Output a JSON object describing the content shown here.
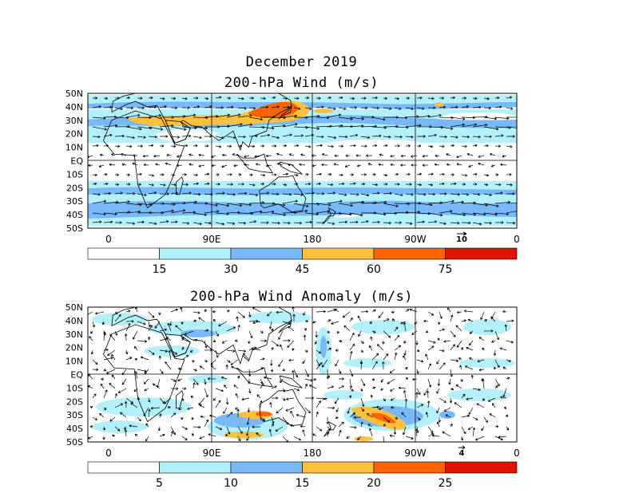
{
  "header": {
    "date_title": "December 2019",
    "panel1_title": "200-hPa Wind (m/s)",
    "panel2_title": "200-hPa Wind Anomaly (m/s)"
  },
  "map": {
    "lat_labels": [
      "50N",
      "40N",
      "30N",
      "20N",
      "10N",
      "EQ",
      "10S",
      "20S",
      "30S",
      "40S",
      "50S"
    ],
    "lon_labels": [
      "0",
      "90E",
      "180",
      "90W",
      "0"
    ]
  },
  "panel1": {
    "reference_vector_label": "10",
    "colorbar": {
      "tick_labels": [
        "15",
        "30",
        "45",
        "60",
        "75"
      ],
      "colors": [
        "#ffffff",
        "#b4f0fa",
        "#78b9fa",
        "#ffc03c",
        "#ff6400",
        "#e11400"
      ]
    }
  },
  "panel2": {
    "reference_vector_label": "4",
    "colorbar": {
      "tick_labels": [
        "5",
        "10",
        "15",
        "20",
        "25"
      ],
      "colors": [
        "#ffffff",
        "#b4f0fa",
        "#78b9fa",
        "#ffc03c",
        "#ff6400",
        "#e11400"
      ]
    }
  }
}
